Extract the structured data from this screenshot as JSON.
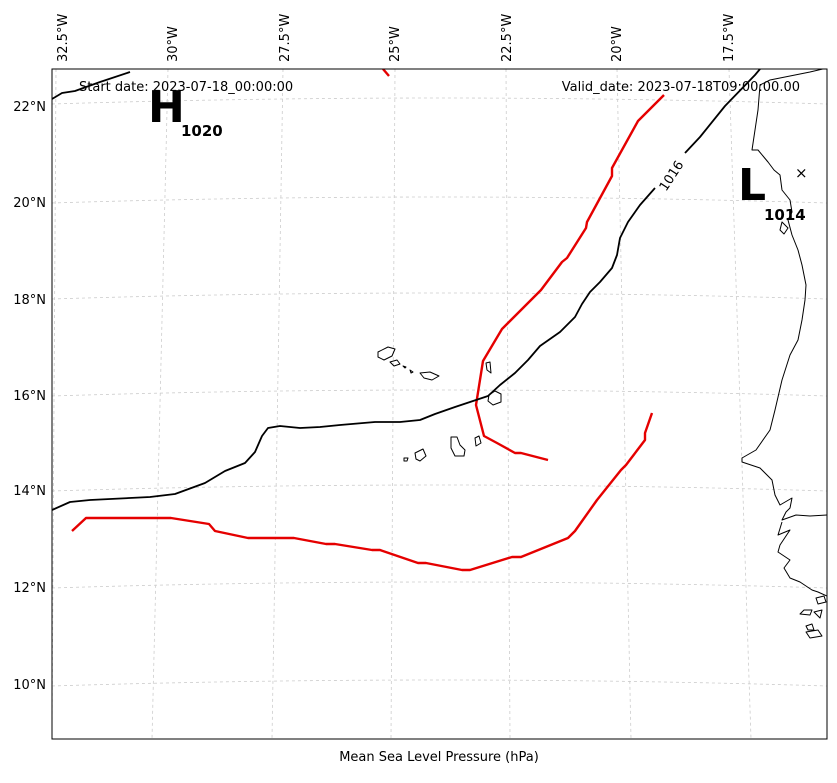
{
  "header": {
    "start_date": "Start date: 2023-07-18_00:00:00",
    "valid_date": "Valid_date: 2023-07-18T09:00:00.00"
  },
  "footer_label": "Mean Sea Level Pressure (hPa)",
  "lon_labels": [
    "32.5°W",
    "30°W",
    "27.5°W",
    "25°W",
    "22.5°W",
    "20°W",
    "17.5°W"
  ],
  "lat_labels": [
    "22°N",
    "20°N",
    "18°N",
    "16°N",
    "14°N",
    "12°N",
    "10°N"
  ],
  "pressure_systems": [
    {
      "symbol": "H",
      "value": "1020"
    },
    {
      "symbol": "L",
      "value": "1014"
    }
  ],
  "isobar_label": "1016",
  "marker_symbol": "×",
  "colors": {
    "isobar": "#000000",
    "highlight_contour": "#e50000",
    "coastline": "#000000",
    "grid": "#cccccc"
  }
}
